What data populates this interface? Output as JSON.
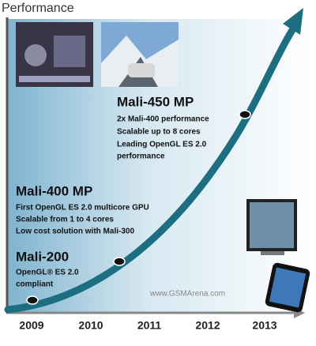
{
  "title": "Performance",
  "years": [
    "2009",
    "2010",
    "2011",
    "2012",
    "2013"
  ],
  "stages": [
    {
      "name": "Mali-200",
      "lines": [
        "OpenGL® ES 2.0",
        "compliant"
      ]
    },
    {
      "name": "Mali-400 MP",
      "lines": [
        "First OpenGL ES 2.0 multicore GPU",
        "Scalable  from 1 to 4 cores",
        "Low cost solution with Mali-300"
      ]
    },
    {
      "name": "Mali-450 MP",
      "lines": [
        "2x Mali-400 performance",
        "Scalable up to 8 cores",
        "Leading OpenGL ES 2.0",
        "performance"
      ]
    }
  ],
  "watermark": "www.GSMArena.com"
}
